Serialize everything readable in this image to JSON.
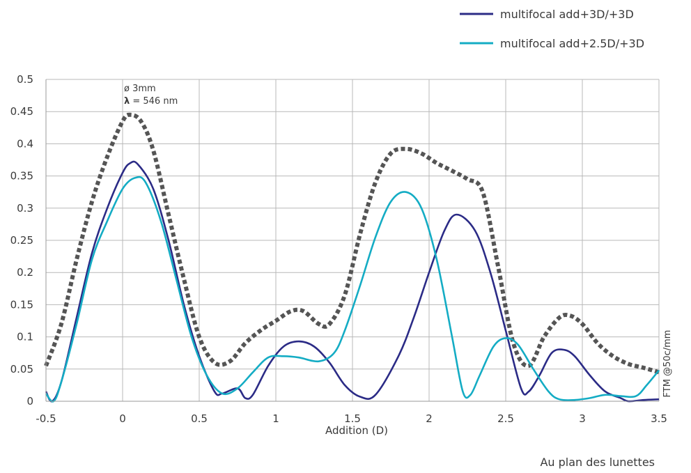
{
  "chart_data": {
    "type": "line",
    "title": "",
    "xlabel": "Addition (D)",
    "ylabel": "FTM @50c/mm",
    "footer": "Au plan des lunettes",
    "xlim": [
      -0.5,
      3.5
    ],
    "ylim": [
      0,
      0.5
    ],
    "x_ticks": [
      "-0.5",
      "0",
      "0.5",
      "1",
      "1.5",
      "2",
      "2.5",
      "3",
      "3.5"
    ],
    "y_ticks": [
      "0",
      "0.05",
      "0.1",
      "0.15",
      "0.2",
      "0.25",
      "0.3",
      "0.35",
      "0.4",
      "0.45",
      "0.5"
    ],
    "grid": true,
    "legend_position": "top-right",
    "annotation": {
      "line1": "ø 3mm",
      "line2_symbol": "λ",
      "line2_rest": " = 546 nm"
    },
    "series": [
      {
        "name": "multifocal add+3D/+3D",
        "color": "#2b2b86",
        "style": "solid",
        "points": [
          [
            -0.5,
            0.015
          ],
          [
            -0.46,
            0.0
          ],
          [
            -0.4,
            0.03
          ],
          [
            -0.3,
            0.13
          ],
          [
            -0.2,
            0.23
          ],
          [
            -0.1,
            0.3
          ],
          [
            0,
            0.355
          ],
          [
            0.05,
            0.37
          ],
          [
            0.1,
            0.368
          ],
          [
            0.2,
            0.33
          ],
          [
            0.3,
            0.25
          ],
          [
            0.4,
            0.15
          ],
          [
            0.5,
            0.07
          ],
          [
            0.6,
            0.015
          ],
          [
            0.65,
            0.012
          ],
          [
            0.75,
            0.02
          ],
          [
            0.8,
            0.005
          ],
          [
            0.85,
            0.01
          ],
          [
            0.95,
            0.055
          ],
          [
            1.05,
            0.085
          ],
          [
            1.15,
            0.093
          ],
          [
            1.25,
            0.085
          ],
          [
            1.35,
            0.06
          ],
          [
            1.45,
            0.025
          ],
          [
            1.55,
            0.007
          ],
          [
            1.65,
            0.01
          ],
          [
            1.8,
            0.07
          ],
          [
            1.9,
            0.13
          ],
          [
            2.0,
            0.2
          ],
          [
            2.1,
            0.265
          ],
          [
            2.18,
            0.29
          ],
          [
            2.3,
            0.265
          ],
          [
            2.4,
            0.2
          ],
          [
            2.5,
            0.11
          ],
          [
            2.6,
            0.02
          ],
          [
            2.65,
            0.015
          ],
          [
            2.72,
            0.04
          ],
          [
            2.8,
            0.075
          ],
          [
            2.88,
            0.08
          ],
          [
            2.95,
            0.07
          ],
          [
            3.05,
            0.04
          ],
          [
            3.15,
            0.015
          ],
          [
            3.25,
            0.005
          ],
          [
            3.3,
            0.0
          ],
          [
            3.4,
            0.002
          ],
          [
            3.5,
            0.003
          ]
        ]
      },
      {
        "name": "multifocal add+2.5D/+3D",
        "color": "#14acc4",
        "style": "solid",
        "points": [
          [
            -0.5,
            0.012
          ],
          [
            -0.45,
            0.0
          ],
          [
            -0.4,
            0.03
          ],
          [
            -0.3,
            0.12
          ],
          [
            -0.2,
            0.22
          ],
          [
            -0.1,
            0.28
          ],
          [
            0,
            0.33
          ],
          [
            0.08,
            0.347
          ],
          [
            0.15,
            0.34
          ],
          [
            0.25,
            0.28
          ],
          [
            0.35,
            0.19
          ],
          [
            0.45,
            0.1
          ],
          [
            0.55,
            0.04
          ],
          [
            0.65,
            0.012
          ],
          [
            0.75,
            0.02
          ],
          [
            0.85,
            0.045
          ],
          [
            0.95,
            0.068
          ],
          [
            1.05,
            0.07
          ],
          [
            1.15,
            0.068
          ],
          [
            1.28,
            0.062
          ],
          [
            1.38,
            0.075
          ],
          [
            1.45,
            0.11
          ],
          [
            1.55,
            0.18
          ],
          [
            1.65,
            0.255
          ],
          [
            1.75,
            0.31
          ],
          [
            1.85,
            0.325
          ],
          [
            1.95,
            0.3
          ],
          [
            2.05,
            0.22
          ],
          [
            2.15,
            0.1
          ],
          [
            2.22,
            0.015
          ],
          [
            2.27,
            0.01
          ],
          [
            2.33,
            0.04
          ],
          [
            2.42,
            0.085
          ],
          [
            2.5,
            0.098
          ],
          [
            2.58,
            0.088
          ],
          [
            2.68,
            0.05
          ],
          [
            2.78,
            0.015
          ],
          [
            2.85,
            0.003
          ],
          [
            2.95,
            0.002
          ],
          [
            3.05,
            0.005
          ],
          [
            3.15,
            0.01
          ],
          [
            3.25,
            0.008
          ],
          [
            3.35,
            0.008
          ],
          [
            3.42,
            0.025
          ],
          [
            3.5,
            0.048
          ]
        ]
      },
      {
        "name": "",
        "color": "#555555",
        "style": "dotted",
        "points": [
          [
            -0.5,
            0.055
          ],
          [
            -0.4,
            0.12
          ],
          [
            -0.3,
            0.22
          ],
          [
            -0.2,
            0.31
          ],
          [
            -0.1,
            0.38
          ],
          [
            0,
            0.435
          ],
          [
            0.05,
            0.445
          ],
          [
            0.12,
            0.435
          ],
          [
            0.2,
            0.39
          ],
          [
            0.3,
            0.29
          ],
          [
            0.4,
            0.19
          ],
          [
            0.5,
            0.1
          ],
          [
            0.6,
            0.06
          ],
          [
            0.7,
            0.062
          ],
          [
            0.8,
            0.09
          ],
          [
            0.9,
            0.11
          ],
          [
            1.0,
            0.125
          ],
          [
            1.1,
            0.14
          ],
          [
            1.18,
            0.14
          ],
          [
            1.28,
            0.12
          ],
          [
            1.35,
            0.12
          ],
          [
            1.45,
            0.165
          ],
          [
            1.55,
            0.26
          ],
          [
            1.65,
            0.34
          ],
          [
            1.75,
            0.385
          ],
          [
            1.85,
            0.392
          ],
          [
            1.95,
            0.385
          ],
          [
            2.05,
            0.37
          ],
          [
            2.15,
            0.358
          ],
          [
            2.25,
            0.345
          ],
          [
            2.35,
            0.325
          ],
          [
            2.45,
            0.21
          ],
          [
            2.55,
            0.09
          ],
          [
            2.65,
            0.055
          ],
          [
            2.75,
            0.1
          ],
          [
            2.85,
            0.13
          ],
          [
            2.92,
            0.133
          ],
          [
            3.0,
            0.12
          ],
          [
            3.1,
            0.09
          ],
          [
            3.2,
            0.07
          ],
          [
            3.3,
            0.058
          ],
          [
            3.4,
            0.052
          ],
          [
            3.5,
            0.045
          ]
        ]
      }
    ]
  }
}
